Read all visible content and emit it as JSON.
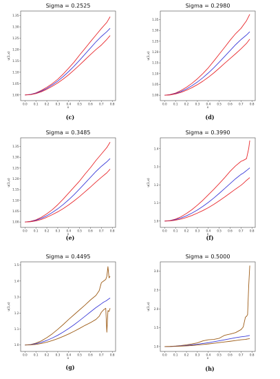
{
  "colors": {
    "upper": "#e8262a",
    "mean": "#3a3ad8",
    "lower": "#e8262a",
    "upper_g": "#9c5a14",
    "lower_g": "#9c5a14"
  },
  "chart_data": [
    {
      "type": "line",
      "caption": "(c)",
      "title": "Sigma = 0.2525",
      "xlabel": "x",
      "ylabel": "u(1,x)",
      "xlim": [
        -0.04,
        0.83
      ],
      "ylim": [
        0.975,
        1.37
      ],
      "xticks": [
        "0.0",
        "0.1",
        "0.2",
        "0.3",
        "0.4",
        "0.5",
        "0.6",
        "0.7",
        "0.8"
      ],
      "yticks": [
        "1.00",
        "1.05",
        "1.10",
        "1.15",
        "1.20",
        "1.25",
        "1.30",
        "1.35"
      ],
      "x": [
        0,
        0.05,
        0.1,
        0.15,
        0.2,
        0.25,
        0.3,
        0.35,
        0.4,
        0.45,
        0.5,
        0.55,
        0.6,
        0.65,
        0.7,
        0.75,
        0.78
      ],
      "series": [
        {
          "values": [
            1.0,
            1.002,
            1.009,
            1.02,
            1.034,
            1.05,
            1.069,
            1.092,
            1.118,
            1.145,
            1.176,
            1.205,
            1.235,
            1.264,
            1.293,
            1.32,
            1.345
          ]
        },
        {
          "values": [
            1.0,
            1.002,
            1.008,
            1.017,
            1.029,
            1.044,
            1.061,
            1.081,
            1.103,
            1.127,
            1.153,
            1.18,
            1.207,
            1.234,
            1.258,
            1.279,
            1.294
          ]
        },
        {
          "values": [
            1.0,
            1.001,
            1.006,
            1.014,
            1.025,
            1.038,
            1.053,
            1.07,
            1.089,
            1.11,
            1.132,
            1.155,
            1.178,
            1.2,
            1.22,
            1.245,
            1.262
          ]
        }
      ]
    },
    {
      "type": "line",
      "caption": "(d)",
      "title": "Sigma = 0.2980",
      "xlabel": "x",
      "ylabel": "u(1,x)",
      "xlim": [
        -0.04,
        0.83
      ],
      "ylim": [
        0.975,
        1.39
      ],
      "xticks": [
        "0.0",
        "0.1",
        "0.2",
        "0.3",
        "0.4",
        "0.5",
        "0.6",
        "0.7",
        "0.8"
      ],
      "yticks": [
        "1.00",
        "1.05",
        "1.10",
        "1.15",
        "1.20",
        "1.25",
        "1.30",
        "1.35"
      ],
      "x": [
        0,
        0.05,
        0.1,
        0.15,
        0.2,
        0.25,
        0.3,
        0.35,
        0.4,
        0.45,
        0.5,
        0.55,
        0.6,
        0.65,
        0.7,
        0.75,
        0.78
      ],
      "series": [
        {
          "values": [
            1.0,
            1.003,
            1.01,
            1.022,
            1.037,
            1.055,
            1.076,
            1.1,
            1.127,
            1.158,
            1.19,
            1.222,
            1.255,
            1.285,
            1.31,
            1.345,
            1.375
          ]
        },
        {
          "values": [
            1.0,
            1.002,
            1.008,
            1.017,
            1.029,
            1.044,
            1.061,
            1.081,
            1.103,
            1.127,
            1.153,
            1.18,
            1.207,
            1.234,
            1.258,
            1.279,
            1.294
          ]
        },
        {
          "values": [
            1.0,
            1.001,
            1.006,
            1.013,
            1.023,
            1.035,
            1.049,
            1.065,
            1.083,
            1.103,
            1.125,
            1.148,
            1.17,
            1.192,
            1.215,
            1.24,
            1.26
          ]
        }
      ]
    },
    {
      "type": "line",
      "caption": "(e)",
      "title": "Sigma = 0.3485",
      "xlabel": "x",
      "ylabel": "u(1,x)",
      "xlim": [
        -0.04,
        0.83
      ],
      "ylim": [
        0.975,
        1.39
      ],
      "xticks": [
        "0.0",
        "0.1",
        "0.2",
        "0.3",
        "0.4",
        "0.5",
        "0.6",
        "0.7",
        "0.8"
      ],
      "yticks": [
        "1.00",
        "1.05",
        "1.10",
        "1.15",
        "1.20",
        "1.25",
        "1.30",
        "1.35"
      ],
      "x": [
        0,
        0.05,
        0.1,
        0.15,
        0.2,
        0.25,
        0.3,
        0.35,
        0.4,
        0.45,
        0.5,
        0.55,
        0.6,
        0.65,
        0.7,
        0.75,
        0.78
      ],
      "series": [
        {
          "values": [
            1.0,
            1.003,
            1.01,
            1.022,
            1.038,
            1.057,
            1.08,
            1.106,
            1.134,
            1.162,
            1.19,
            1.222,
            1.252,
            1.285,
            1.315,
            1.345,
            1.37
          ]
        },
        {
          "values": [
            1.0,
            1.002,
            1.008,
            1.017,
            1.029,
            1.044,
            1.061,
            1.081,
            1.103,
            1.127,
            1.153,
            1.18,
            1.207,
            1.234,
            1.258,
            1.279,
            1.294
          ]
        },
        {
          "values": [
            1.0,
            1.001,
            1.005,
            1.012,
            1.022,
            1.034,
            1.047,
            1.062,
            1.079,
            1.098,
            1.118,
            1.14,
            1.162,
            1.185,
            1.207,
            1.228,
            1.245
          ]
        }
      ]
    },
    {
      "type": "line",
      "caption": "(f)",
      "title": "Sigma = 0.3990",
      "xlabel": "x",
      "ylabel": "u(1,x)",
      "xlim": [
        -0.04,
        0.83
      ],
      "ylim": [
        0.965,
        1.46
      ],
      "xticks": [
        "0.0",
        "0.1",
        "0.2",
        "0.3",
        "0.4",
        "0.5",
        "0.6",
        "0.7",
        "0.8"
      ],
      "yticks": [
        "1.0",
        "1.1",
        "1.2",
        "1.3",
        "1.4"
      ],
      "x": [
        0,
        0.05,
        0.1,
        0.15,
        0.2,
        0.25,
        0.3,
        0.35,
        0.4,
        0.45,
        0.5,
        0.55,
        0.6,
        0.65,
        0.7,
        0.72,
        0.75,
        0.77,
        0.78
      ],
      "series": [
        {
          "values": [
            1.0,
            1.003,
            1.011,
            1.024,
            1.042,
            1.063,
            1.088,
            1.115,
            1.145,
            1.175,
            1.207,
            1.24,
            1.275,
            1.305,
            1.33,
            1.335,
            1.345,
            1.4,
            1.445
          ]
        },
        {
          "values": [
            1.0,
            1.002,
            1.008,
            1.017,
            1.029,
            1.044,
            1.061,
            1.081,
            1.103,
            1.127,
            1.153,
            1.18,
            1.207,
            1.234,
            1.258,
            1.265,
            1.279,
            1.289,
            1.294
          ]
        },
        {
          "values": [
            1.0,
            1.001,
            1.005,
            1.011,
            1.02,
            1.031,
            1.044,
            1.058,
            1.074,
            1.092,
            1.112,
            1.133,
            1.155,
            1.177,
            1.198,
            1.208,
            1.225,
            1.235,
            1.24
          ]
        }
      ]
    },
    {
      "type": "line",
      "caption": "(g)",
      "title": "Sigma = 0.4495",
      "xlabel": "x",
      "ylabel": "u(1,x)",
      "xlim": [
        -0.04,
        0.83
      ],
      "ylim": [
        0.96,
        1.52
      ],
      "xticks": [
        "0.0",
        "0.1",
        "0.2",
        "0.3",
        "0.4",
        "0.5",
        "0.6",
        "0.7",
        "0.8"
      ],
      "yticks": [
        "1.0",
        "1.1",
        "1.2",
        "1.3",
        "1.4",
        "1.5"
      ],
      "x": [
        0,
        0.05,
        0.1,
        0.15,
        0.2,
        0.25,
        0.3,
        0.35,
        0.4,
        0.45,
        0.5,
        0.55,
        0.6,
        0.65,
        0.68,
        0.7,
        0.72,
        0.74,
        0.75,
        0.76,
        0.77,
        0.78
      ],
      "series": [
        {
          "values": [
            1.0,
            1.003,
            1.012,
            1.026,
            1.046,
            1.07,
            1.098,
            1.128,
            1.16,
            1.19,
            1.22,
            1.25,
            1.282,
            1.31,
            1.34,
            1.39,
            1.4,
            1.41,
            1.43,
            1.49,
            1.42,
            1.43
          ]
        },
        {
          "values": [
            1.0,
            1.002,
            1.008,
            1.017,
            1.029,
            1.044,
            1.061,
            1.081,
            1.103,
            1.127,
            1.153,
            1.18,
            1.207,
            1.234,
            1.248,
            1.258,
            1.268,
            1.275,
            1.279,
            1.285,
            1.289,
            1.294
          ]
        },
        {
          "values": [
            1.0,
            1.001,
            1.004,
            1.01,
            1.018,
            1.028,
            1.04,
            1.054,
            1.069,
            1.086,
            1.104,
            1.123,
            1.14,
            1.16,
            1.18,
            1.205,
            1.22,
            1.23,
            1.08,
            1.215,
            1.21,
            1.23
          ]
        }
      ]
    },
    {
      "type": "line",
      "caption": "(h)",
      "title": "Sigma = 0.5000",
      "xlabel": "x",
      "ylabel": "u(1,x)",
      "xlim": [
        -0.04,
        0.83
      ],
      "ylim": [
        0.87,
        3.25
      ],
      "xticks": [
        "0.0",
        "0.1",
        "0.2",
        "0.3",
        "0.4",
        "0.5",
        "0.6",
        "0.7",
        "0.8"
      ],
      "yticks": [
        "1.0",
        "1.5",
        "2.0",
        "2.5",
        "3.0"
      ],
      "x": [
        0,
        0.05,
        0.1,
        0.15,
        0.2,
        0.25,
        0.3,
        0.35,
        0.4,
        0.45,
        0.5,
        0.55,
        0.6,
        0.65,
        0.7,
        0.72,
        0.74,
        0.75,
        0.76,
        0.77,
        0.78
      ],
      "series": [
        {
          "values": [
            1.0,
            1.003,
            1.012,
            1.026,
            1.046,
            1.07,
            1.098,
            1.15,
            1.18,
            1.19,
            1.22,
            1.3,
            1.33,
            1.37,
            1.45,
            1.52,
            1.78,
            1.8,
            1.85,
            2.6,
            3.15
          ]
        },
        {
          "values": [
            1.0,
            1.002,
            1.008,
            1.017,
            1.029,
            1.044,
            1.061,
            1.081,
            1.103,
            1.127,
            1.153,
            1.18,
            1.207,
            1.234,
            1.258,
            1.265,
            1.272,
            1.279,
            1.284,
            1.289,
            1.294
          ]
        },
        {
          "values": [
            1.0,
            1.001,
            1.004,
            1.01,
            1.018,
            1.028,
            1.04,
            1.054,
            1.069,
            1.086,
            1.104,
            1.123,
            1.14,
            1.16,
            1.18,
            1.185,
            1.19,
            1.195,
            1.2,
            1.205,
            1.21
          ]
        }
      ]
    }
  ]
}
